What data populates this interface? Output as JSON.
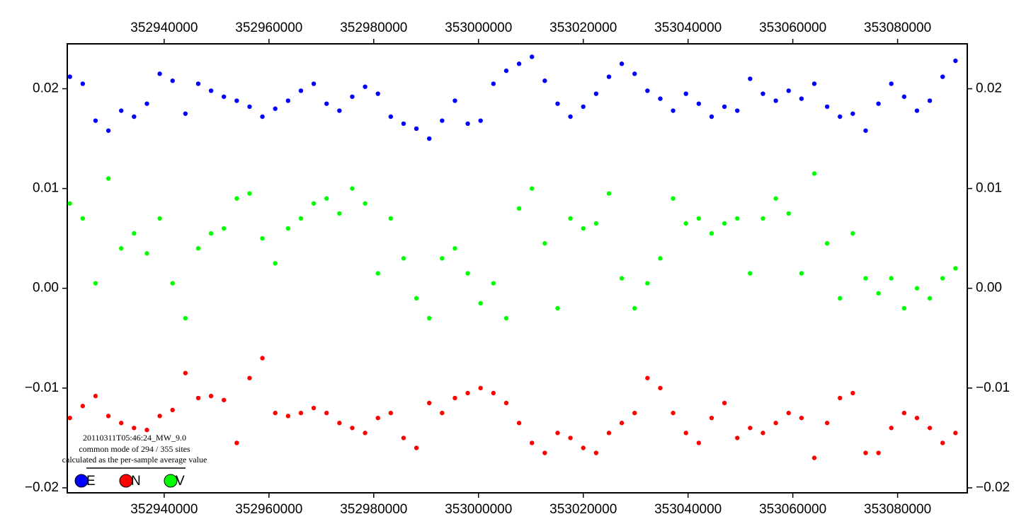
{
  "chart_data": {
    "type": "scatter",
    "annotations": [
      "20110311T05:46:24_MW_9.0",
      "common mode of 294 / 355 sites",
      "calculated as the per-sample average value"
    ],
    "x": [
      352922000,
      352924450,
      352926900,
      352929350,
      352931800,
      352934250,
      352936700,
      352939150,
      352941600,
      352944050,
      352946500,
      352948950,
      352951400,
      352953850,
      352956300,
      352958750,
      352961200,
      352963650,
      352966100,
      352968550,
      352971000,
      352973450,
      352975900,
      352978350,
      352980800,
      352983250,
      352985700,
      352988150,
      352990600,
      352993050,
      352995500,
      352997950,
      353000400,
      353002850,
      353005300,
      353007750,
      353010200,
      353012650,
      353015100,
      353017550,
      353020000,
      353022450,
      353024900,
      353027350,
      353029800,
      353032250,
      353034700,
      353037150,
      353039600,
      353042050,
      353044500,
      353046950,
      353049400,
      353051850,
      353054300,
      353056750,
      353059200,
      353061650,
      353064100,
      353066550,
      353069000,
      353071450,
      353073900,
      353076350,
      353078800,
      353081250,
      353083700,
      353086150,
      353088600,
      353091050
    ],
    "series": [
      {
        "name": "E",
        "color": "#0000ff",
        "values": [
          0.0212,
          0.0205,
          0.0168,
          0.0158,
          0.0178,
          0.0172,
          0.0185,
          0.0215,
          0.0208,
          0.0175,
          0.0205,
          0.0198,
          0.0192,
          0.0188,
          0.0182,
          0.0172,
          0.018,
          0.0188,
          0.0198,
          0.0205,
          0.0185,
          0.0178,
          0.0192,
          0.0202,
          0.0195,
          0.0172,
          0.0165,
          0.016,
          0.015,
          0.0168,
          0.0188,
          0.0165,
          0.0168,
          0.0205,
          0.0218,
          0.0225,
          0.0232,
          0.0208,
          0.0185,
          0.0172,
          0.0182,
          0.0195,
          0.0212,
          0.0225,
          0.0215,
          0.0198,
          0.019,
          0.0178,
          0.0195,
          0.0185,
          0.0172,
          0.0182,
          0.0178,
          0.021,
          0.0195,
          0.0188,
          0.0198,
          0.019,
          0.0205,
          0.0182,
          0.0172,
          0.0175,
          0.0158,
          0.0185,
          0.0205,
          0.0192,
          0.0178,
          0.0188,
          0.0212,
          0.0228
        ]
      },
      {
        "name": "N",
        "color": "#ff0000",
        "values": [
          -0.013,
          -0.0118,
          -0.0108,
          -0.0128,
          -0.0135,
          -0.014,
          -0.0142,
          -0.0128,
          -0.0122,
          -0.0085,
          -0.011,
          -0.0108,
          -0.0112,
          -0.0155,
          -0.009,
          -0.007,
          -0.0125,
          -0.0128,
          -0.0125,
          -0.012,
          -0.0125,
          -0.0135,
          -0.014,
          -0.0145,
          -0.013,
          -0.0125,
          -0.015,
          -0.016,
          -0.0115,
          -0.0125,
          -0.011,
          -0.0105,
          -0.01,
          -0.0105,
          -0.0115,
          -0.0135,
          -0.0155,
          -0.0165,
          -0.0145,
          -0.015,
          -0.016,
          -0.0165,
          -0.0145,
          -0.0135,
          -0.0125,
          -0.009,
          -0.01,
          -0.0125,
          -0.0145,
          -0.0155,
          -0.013,
          -0.0115,
          -0.015,
          -0.014,
          -0.0145,
          -0.0135,
          -0.0125,
          -0.013,
          -0.017,
          -0.0135,
          -0.011,
          -0.0105,
          -0.0165,
          -0.0165,
          -0.014,
          -0.0125,
          -0.013,
          -0.014,
          -0.0155,
          -0.0145
        ]
      },
      {
        "name": "V",
        "color": "#00ff00",
        "values": [
          0.0085,
          0.007,
          0.0005,
          0.011,
          0.004,
          0.0055,
          0.0035,
          0.007,
          0.0005,
          -0.003,
          0.004,
          0.0055,
          0.006,
          0.009,
          0.0095,
          0.005,
          0.0025,
          0.006,
          0.007,
          0.0085,
          0.009,
          0.0075,
          0.01,
          0.0085,
          0.0015,
          0.007,
          0.003,
          -0.001,
          -0.003,
          0.003,
          0.004,
          0.0015,
          -0.0015,
          0.0005,
          -0.003,
          0.008,
          0.01,
          0.0045,
          -0.002,
          0.007,
          0.006,
          0.0065,
          0.0095,
          0.001,
          -0.002,
          0.0005,
          0.003,
          0.009,
          0.0065,
          0.007,
          0.0055,
          0.0065,
          0.007,
          0.0015,
          0.007,
          0.009,
          0.0075,
          0.0015,
          0.0115,
          0.0045,
          -0.001,
          0.0055,
          0.001,
          -0.0005,
          0.001,
          -0.002,
          0,
          -0.001,
          0.001,
          0.002
        ]
      }
    ],
    "xlim": [
      352921500,
      353093300
    ],
    "xticks": [
      352940000,
      352960000,
      352980000,
      353000000,
      353020000,
      353040000,
      353060000,
      353080000
    ],
    "ylim": [
      -0.0205,
      0.0245
    ],
    "yticks": [
      {
        "value": -0.02,
        "label": "−0.02"
      },
      {
        "value": -0.01,
        "label": "−0.01"
      },
      {
        "value": 0,
        "label": "0.00"
      },
      0.01,
      0.02
    ]
  }
}
